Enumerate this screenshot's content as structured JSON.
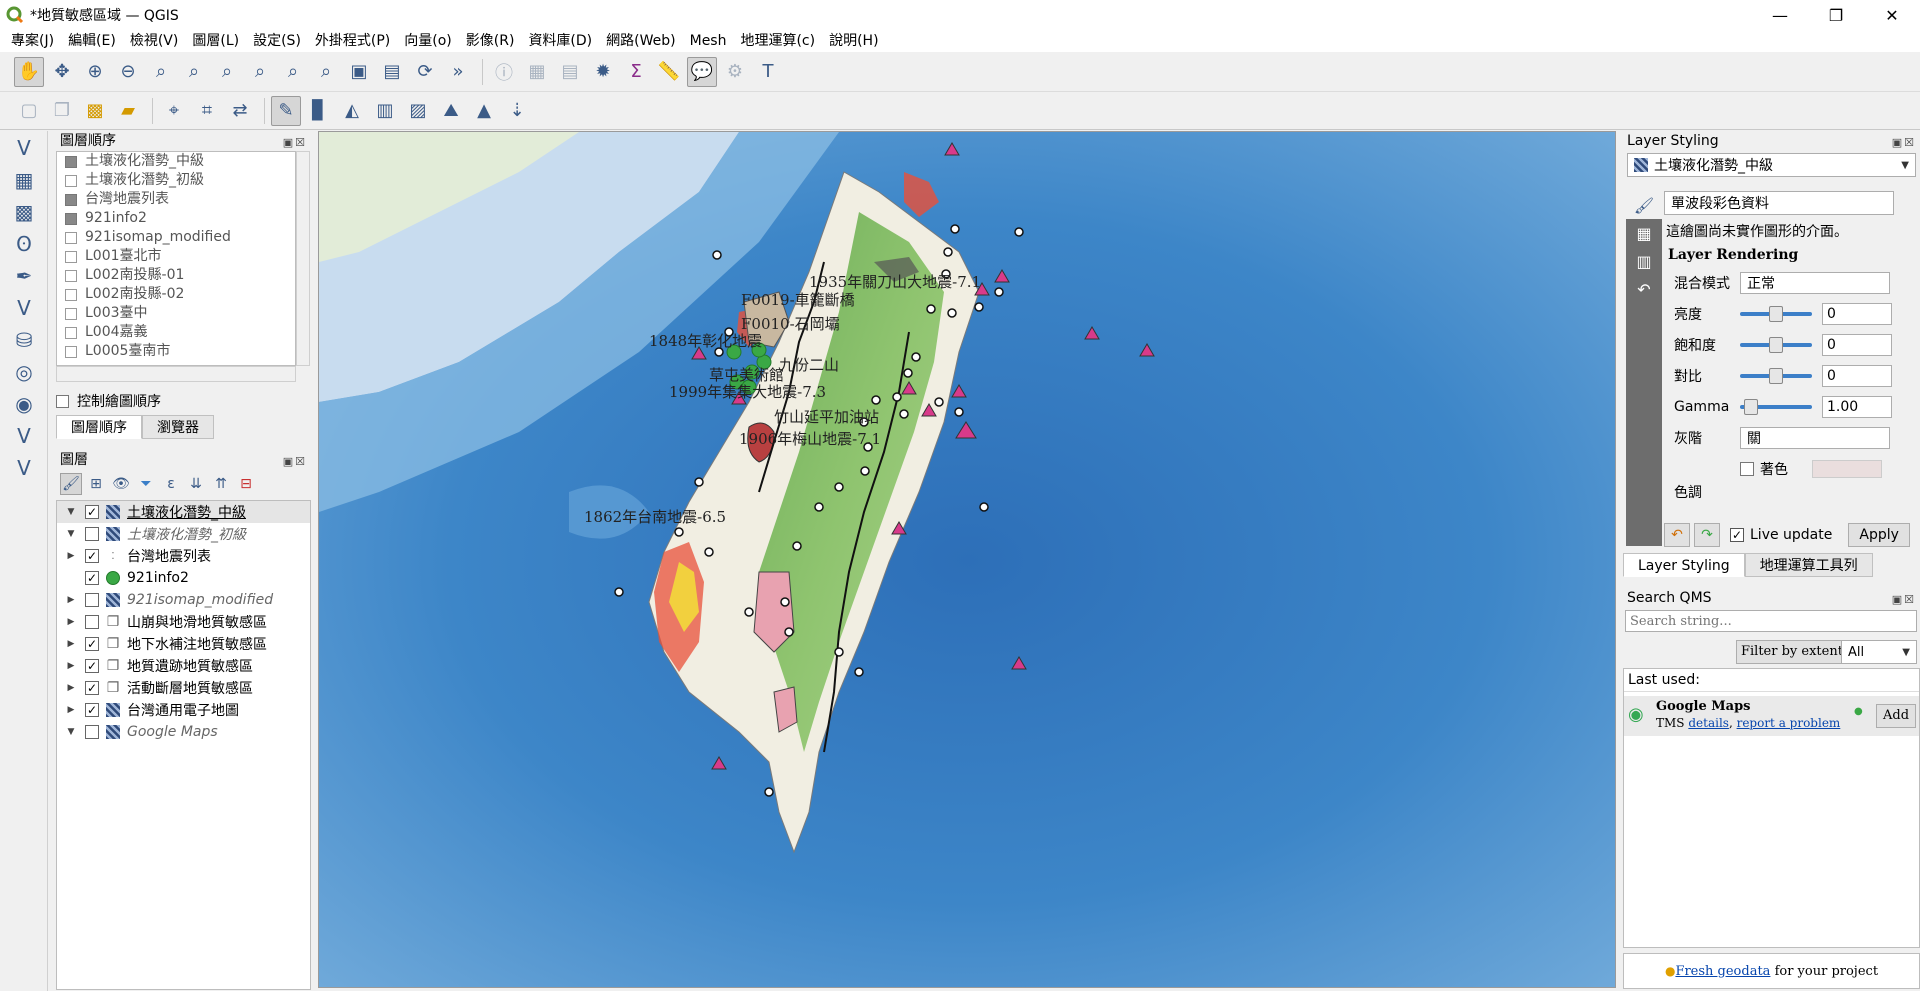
{
  "window": {
    "title": "*地質敏感區域 — QGIS",
    "controls": [
      "—",
      "❐",
      "✕"
    ]
  },
  "menu": [
    "專案(J)",
    "編輯(E)",
    "檢視(V)",
    "圖層(L)",
    "設定(S)",
    "外掛程式(P)",
    "向量(o)",
    "影像(R)",
    "資料庫(D)",
    "網路(Web)",
    "Mesh",
    "地理運算(c)",
    "說明(H)"
  ],
  "layer_order": {
    "title": "圖層順序",
    "items": [
      "土壤液化潛勢_中級",
      "土壤液化潛勢_初級",
      "台灣地震列表",
      "921info2",
      "921isomap_modified",
      "L001臺北市",
      "L002南投縣-01",
      "L002南投縣-02",
      "L003臺中",
      "L004嘉義",
      "L0005臺南市"
    ],
    "control_label": "控制繪圖順序",
    "tabs": [
      "圖層順序",
      "瀏覽器"
    ]
  },
  "layers": {
    "title": "圖層",
    "items": [
      {
        "name": "土壤液化潛勢_中級",
        "checked": true,
        "type": "raster",
        "selected": true
      },
      {
        "name": "土壤液化潛勢_初級",
        "checked": false,
        "type": "raster"
      },
      {
        "name": "台灣地震列表",
        "checked": true,
        "type": "points"
      },
      {
        "name": "921info2",
        "checked": true,
        "type": "point-green"
      },
      {
        "name": "921isomap_modified",
        "checked": false,
        "type": "raster"
      },
      {
        "name": "山崩與地滑地質敏感區",
        "checked": false,
        "type": "group"
      },
      {
        "name": "地下水補注地質敏感區",
        "checked": true,
        "type": "group"
      },
      {
        "name": "地質遺跡地質敏感區",
        "checked": true,
        "type": "group"
      },
      {
        "name": "活動斷層地質敏感區",
        "checked": true,
        "type": "group"
      },
      {
        "name": "台灣通用電子地圖",
        "checked": true,
        "type": "raster"
      },
      {
        "name": "Google Maps",
        "checked": false,
        "type": "raster"
      }
    ]
  },
  "map_labels": [
    {
      "text": "1935年關刀山大地震-7.1"
    },
    {
      "text": "F0019-車籠斷橋"
    },
    {
      "text": "F0010-石岡壩"
    },
    {
      "text": "1848年彰化地震"
    },
    {
      "text": "九份二山"
    },
    {
      "text": "草屯美術館"
    },
    {
      "text": "1999年集集大地震-7.3"
    },
    {
      "text": "竹山延平加油站"
    },
    {
      "text": "1906年梅山地震-7.1"
    },
    {
      "text": "1862年台南地震-6.5"
    }
  ],
  "styling": {
    "title": "Layer Styling",
    "layer_select": "土壤液化潛勢_中級",
    "renderer": "單波段彩色資料",
    "note": "這繪圖尚未實作圖形的介面。",
    "section": "Layer Rendering",
    "blend_label": "混合模式",
    "blend_value": "正常",
    "rows": [
      {
        "label": "亮度",
        "value": "0"
      },
      {
        "label": "飽和度",
        "value": "0"
      },
      {
        "label": "對比",
        "value": "0"
      },
      {
        "label": "Gamma",
        "value": "1.00"
      }
    ],
    "gray_label": "灰階",
    "gray_value": "關",
    "colorize_label": "著色",
    "hue_label": "色調",
    "live_update": "Live update",
    "apply": "Apply",
    "tabs": [
      "Layer Styling",
      "地理運算工具列"
    ]
  },
  "qms": {
    "title": "Search QMS",
    "search_placeholder": "Search string...",
    "filter_button": "Filter by extent",
    "filter_select": "All",
    "last_used": "Last used:",
    "service_name": "Google Maps",
    "service_type": "TMS",
    "details_link": "details",
    "report_link": "report a problem",
    "add_button": "Add",
    "footer_link": "Fresh geodata",
    "footer_text": " for your project"
  }
}
